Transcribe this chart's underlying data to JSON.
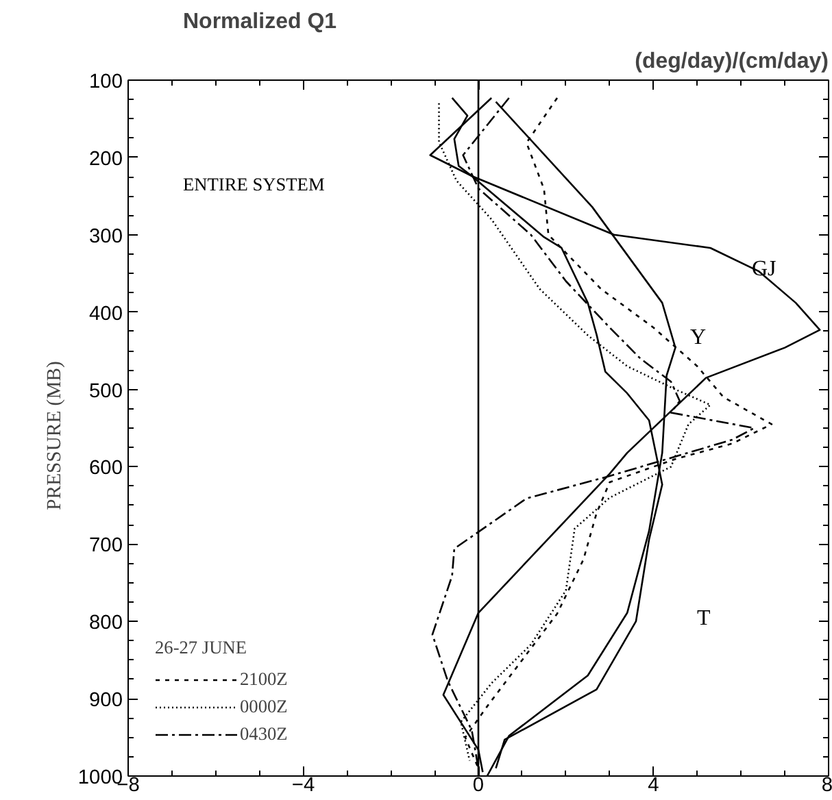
{
  "chart_data": {
    "type": "line",
    "title": "Normalized Q1",
    "subtitle": "(deg/day)/(cm/day)",
    "ylabel": "PRESSURE    (MB)",
    "legend_title": "26-27 JUNE",
    "legend": "bottom left",
    "grid": false,
    "xlim": [
      -8,
      8
    ],
    "ylim": [
      1000,
      100
    ],
    "xticks": [
      {
        "value": -8,
        "label": "−8"
      },
      {
        "value": -4,
        "label": "−4"
      },
      0,
      4,
      8
    ],
    "yticks": [
      100,
      200,
      300,
      400,
      500,
      600,
      700,
      800,
      900,
      1000
    ],
    "ref_lines": [
      {
        "axis": "x",
        "value": 0,
        "label": null,
        "color": "#000000"
      }
    ],
    "annotations": [
      "ENTIRE SYSTEM",
      "GJ",
      "Y",
      "T"
    ],
    "series": [
      {
        "name": "2100Z",
        "color": "#000000",
        "line_style": "dashed",
        "x": [
          1.8,
          1.1,
          1.5,
          1.6,
          2.8,
          4.0,
          5.0,
          5.6,
          6.7,
          5.8,
          4.5,
          3.0,
          2.7,
          2.4,
          1.8,
          1.0,
          0.2,
          -0.3,
          0.0
        ],
        "values": [
          123,
          181,
          241,
          300,
          370,
          420,
          470,
          510,
          545,
          570,
          590,
          620,
          660,
          720,
          790,
          850,
          910,
          950,
          990
        ]
      },
      {
        "name": "0000Z",
        "color": "#000000",
        "line_style": "dotted",
        "x": [
          -0.9,
          -0.9,
          -0.5,
          0.3,
          1.4,
          2.5,
          3.4,
          4.5,
          5.3,
          4.8,
          4.4,
          3.0,
          2.2,
          2.0,
          1.2,
          0.3,
          -0.4,
          -0.2
        ],
        "values": [
          130,
          180,
          230,
          280,
          370,
          430,
          470,
          500,
          520,
          545,
          600,
          640,
          680,
          760,
          830,
          880,
          930,
          980
        ]
      },
      {
        "name": "0430Z",
        "color": "#000000",
        "line_style": "dashdot",
        "x": [
          0.7,
          -0.35,
          0.0,
          1.2,
          2.0,
          3.0,
          3.7,
          4.4,
          4.6,
          4.4,
          6.3,
          5.8,
          3.0,
          1.1,
          -0.55,
          -0.6,
          -1.05,
          -0.7,
          -0.15,
          0.0
        ],
        "values": [
          123,
          197,
          240,
          300,
          360,
          420,
          460,
          490,
          515,
          530,
          550,
          565,
          612,
          641,
          706,
          741,
          817,
          877,
          941,
          990
        ]
      },
      {
        "color": "#000000",
        "line_style": "solid",
        "x": [
          0.3,
          -1.1,
          -0.15,
          3.1,
          5.3,
          6.4,
          7.25,
          7.8,
          7.0,
          5.2,
          3.4,
          3.0,
          0.0,
          -0.8,
          0.0,
          0.1
        ],
        "values": [
          123,
          197,
          224,
          300,
          317,
          347,
          388,
          423,
          446,
          485,
          582,
          609,
          789,
          895,
          966,
          995
        ]
      },
      {
        "color": "#000000",
        "line_style": "solid",
        "x": [
          0.4,
          2.6,
          4.2,
          4.5,
          4.3,
          4.2,
          3.9,
          3.4,
          2.5,
          0.7,
          0.2
        ],
        "values": [
          128,
          264,
          388,
          446,
          482,
          582,
          683,
          789,
          870,
          948,
          1000
        ]
      },
      {
        "color": "#000000",
        "line_style": "solid",
        "x": [
          -0.6,
          -0.25,
          -0.55,
          -0.45,
          -0.15,
          1.5,
          1.9,
          2.5,
          2.7,
          2.9,
          3.4,
          3.9,
          4.1,
          4.2,
          3.9,
          3.6,
          2.7,
          0.6,
          0.4
        ],
        "values": [
          123,
          146,
          176,
          211,
          224,
          303,
          317,
          388,
          429,
          477,
          505,
          540,
          595,
          623,
          694,
          800,
          888,
          953,
          990
        ]
      }
    ]
  }
}
